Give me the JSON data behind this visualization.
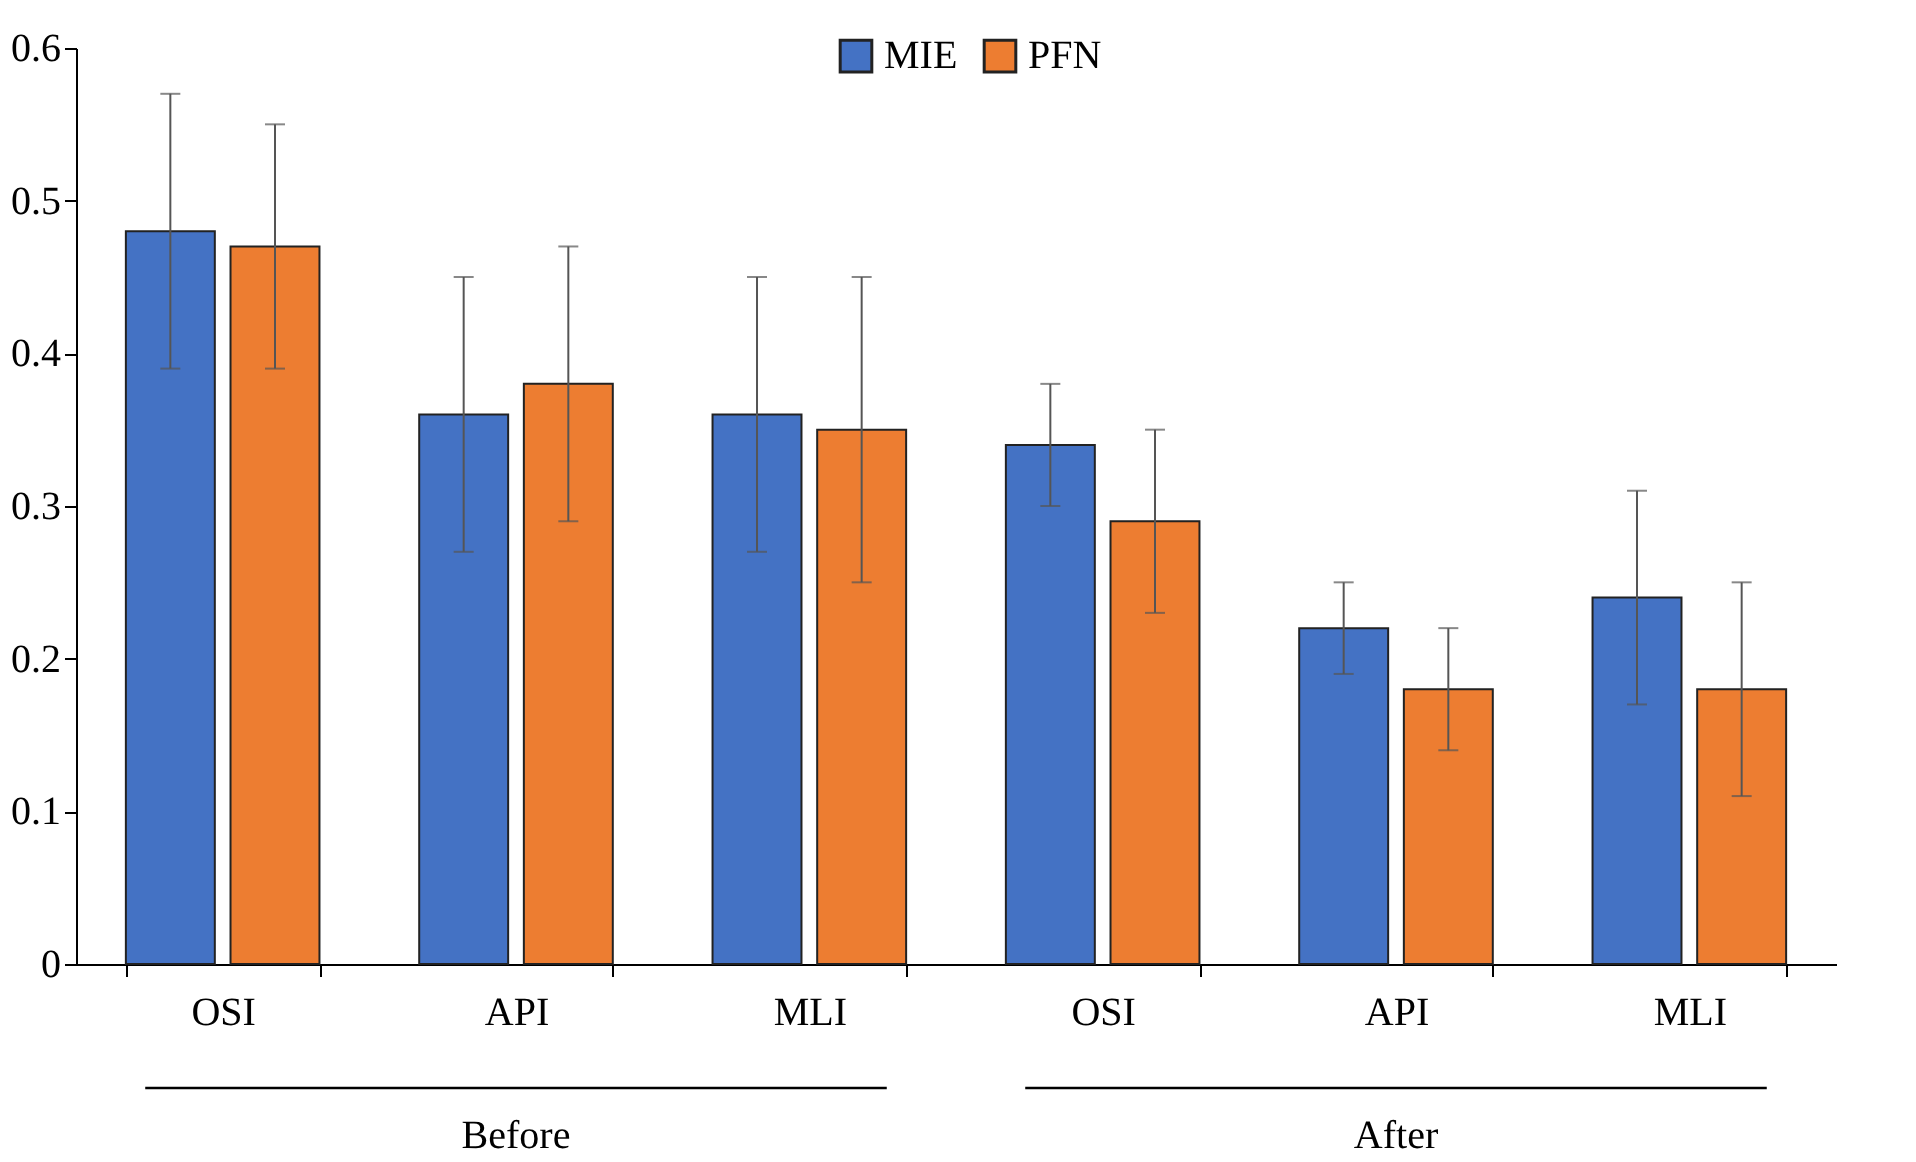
{
  "chart_data": {
    "type": "bar",
    "categories": [
      "OSI",
      "API",
      "MLI",
      "OSI",
      "API",
      "MLI"
    ],
    "series": [
      {
        "name": "MIE",
        "color": "#4472c4",
        "values": [
          0.48,
          0.36,
          0.36,
          0.34,
          0.22,
          0.24
        ],
        "errors": [
          0.09,
          0.09,
          0.09,
          0.04,
          0.03,
          0.07
        ]
      },
      {
        "name": "PFN",
        "color": "#ed7d31",
        "values": [
          0.47,
          0.38,
          0.35,
          0.29,
          0.18,
          0.18
        ],
        "errors": [
          0.08,
          0.09,
          0.1,
          0.06,
          0.04,
          0.07
        ]
      }
    ],
    "ylim": [
      0,
      0.6
    ],
    "yticks": [
      0,
      0.1,
      0.2,
      0.3,
      0.4,
      0.5,
      0.6
    ],
    "grid": false,
    "legend": "top",
    "annotations": [
      "Before",
      "After"
    ]
  }
}
